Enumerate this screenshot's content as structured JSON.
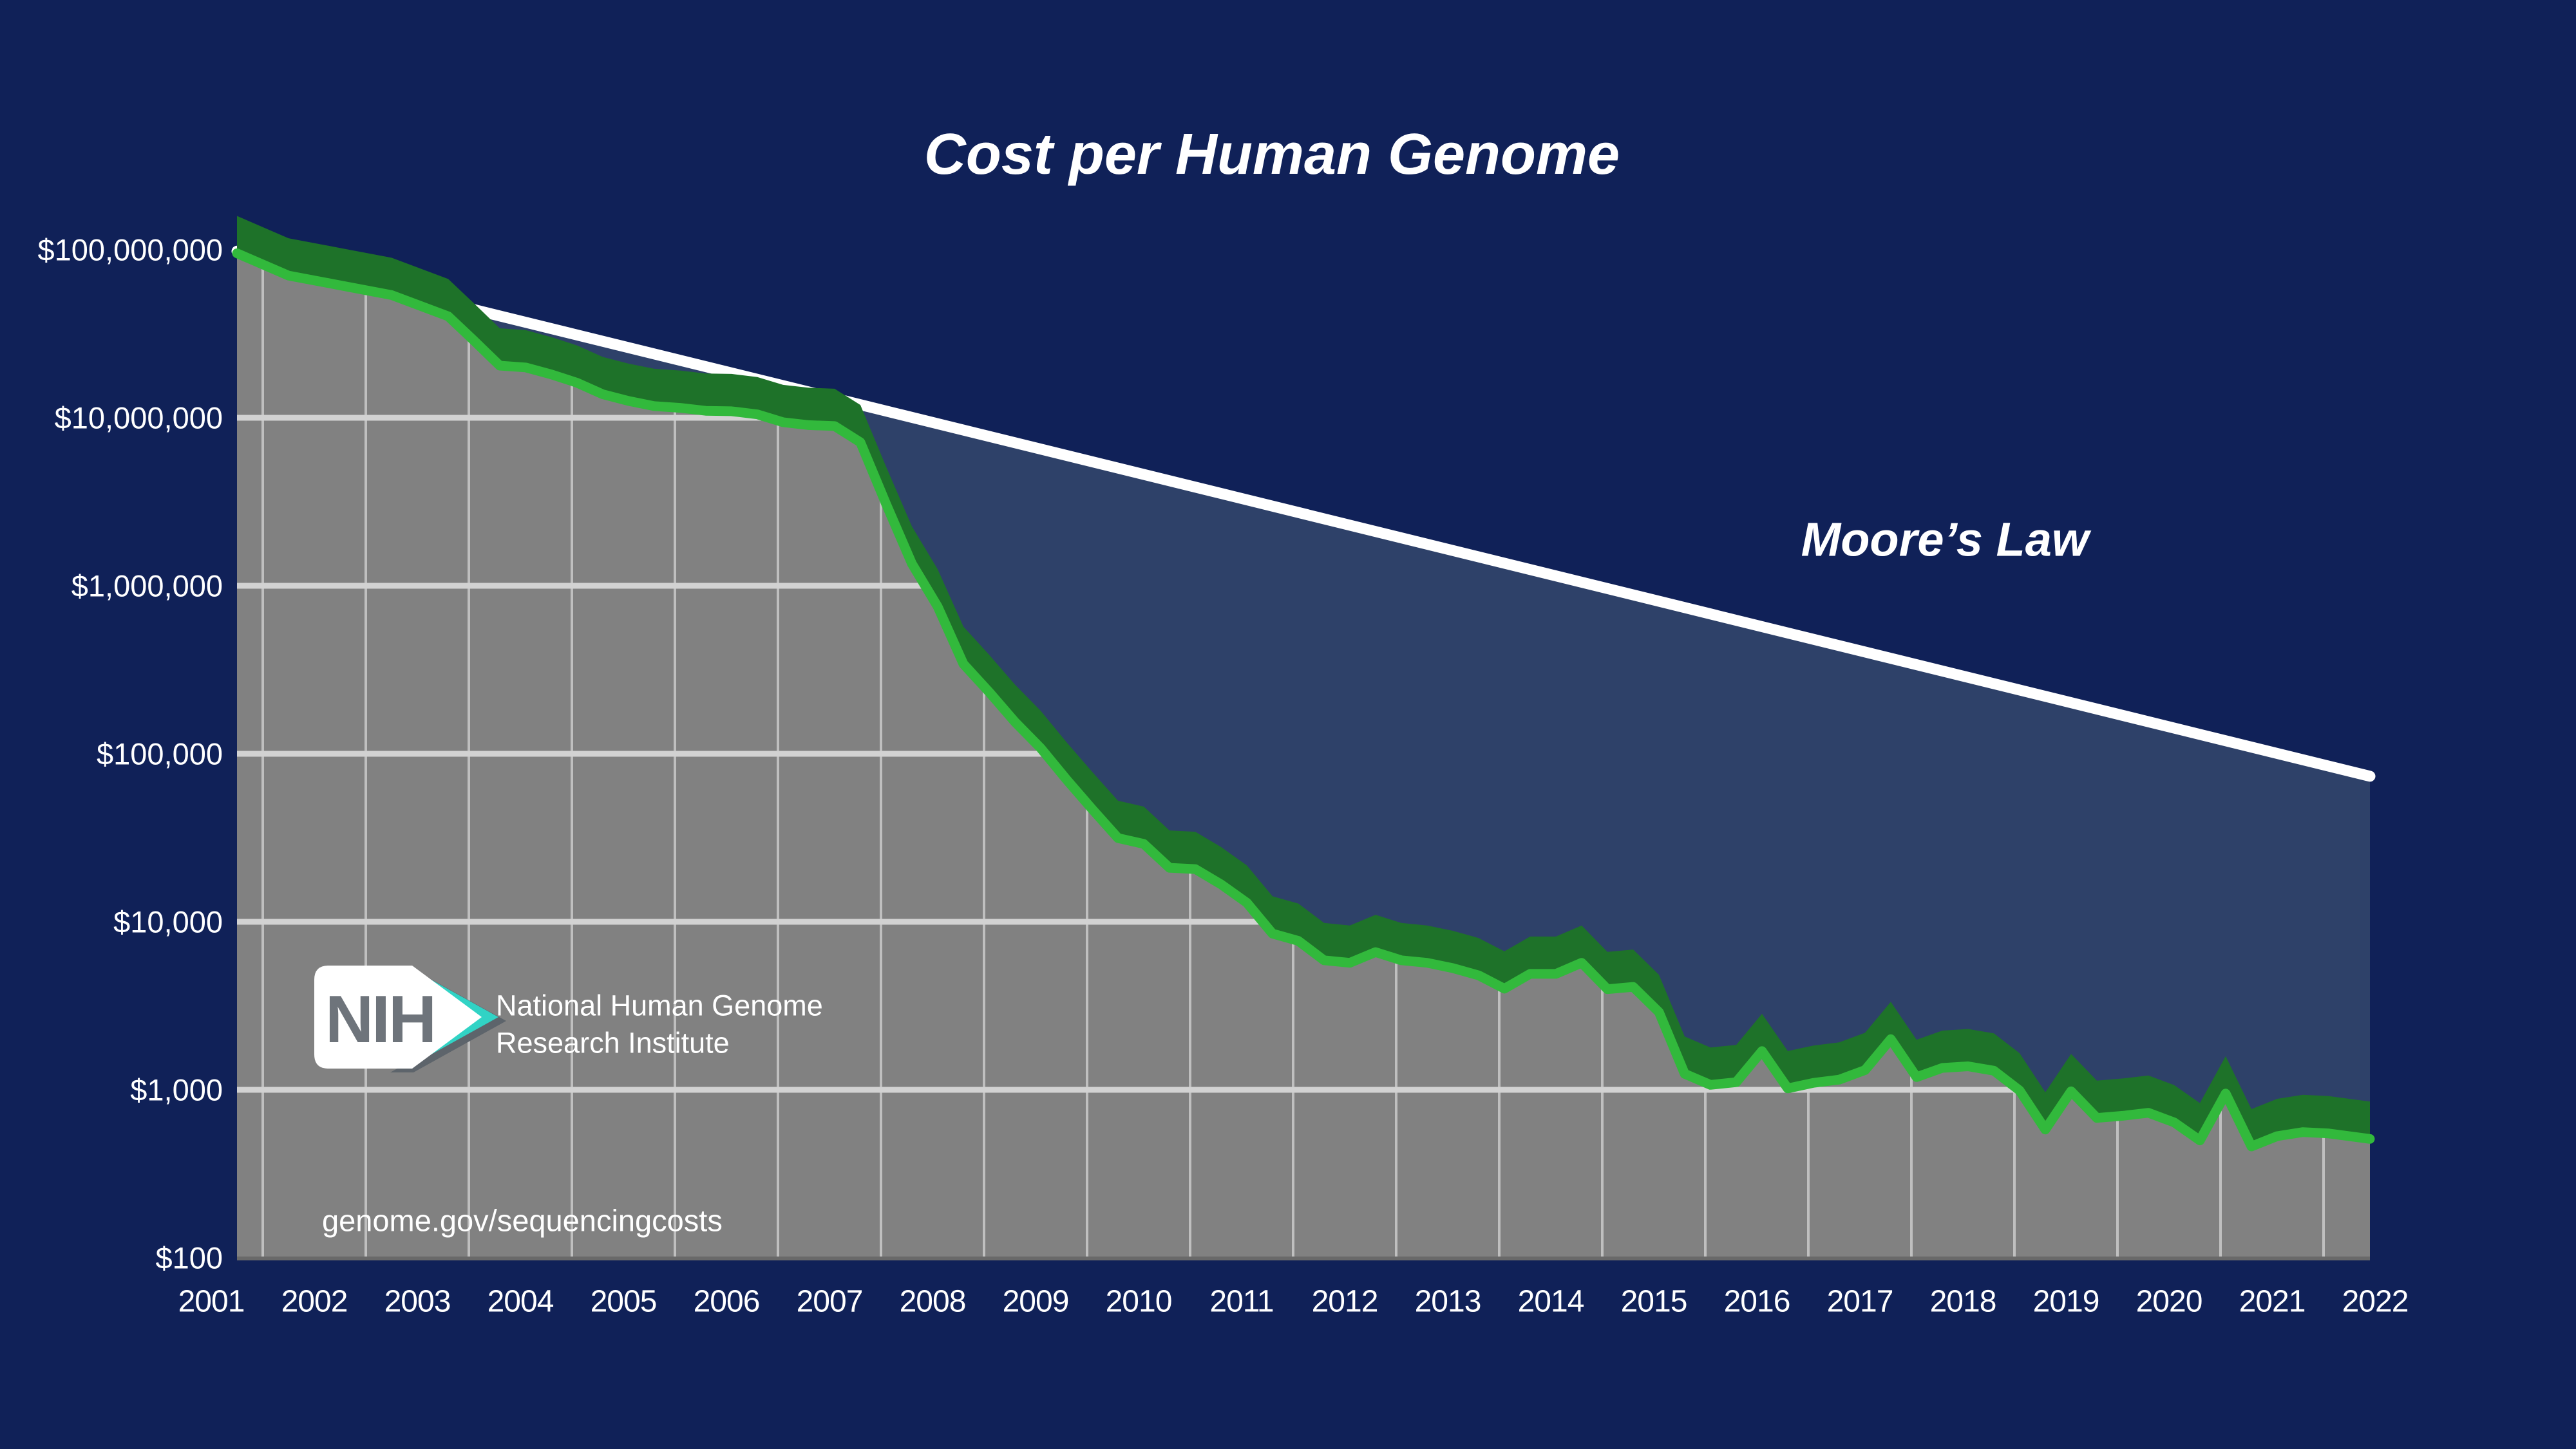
{
  "title": "Cost per Human Genome",
  "moore_label": "Moore’s Law",
  "url_label": "genome.gov/sequencingcosts",
  "logo": {
    "acronym": "NIH",
    "name_line1": "National Human Genome",
    "name_line2": "Research Institute"
  },
  "colors": {
    "background": "#102158",
    "moore_fill": "#2e4169",
    "moore_line": "#ffffff",
    "area_gray": "#818181",
    "grid_vertical": "#bfbfbf",
    "grid_horizontal": "#d2d2d2",
    "plot_bottom_edge": "#696969",
    "green_line": "#32b93c",
    "green_band": "#1e7229",
    "logo_white": "#ffffff",
    "logo_teal": "#31d3c5",
    "logo_shadow": "#5d646b",
    "logo_letters": "#6e747b",
    "text_white": "#ffffff"
  },
  "chart_data": {
    "type": "area",
    "title": "Cost per Human Genome",
    "xlabel": "",
    "ylabel": "",
    "y_log_scale": true,
    "ylim": [
      100,
      158000000
    ],
    "xlim": [
      2001.7,
      2022.5
    ],
    "grid": true,
    "legend_position": "none",
    "x_ticks": [
      2001,
      2002,
      2003,
      2004,
      2005,
      2006,
      2007,
      2008,
      2009,
      2010,
      2011,
      2012,
      2013,
      2014,
      2015,
      2016,
      2017,
      2018,
      2019,
      2020,
      2021,
      2022
    ],
    "y_ticks": [
      {
        "value": 100000000,
        "label": "$100,000,000"
      },
      {
        "value": 10000000,
        "label": "$10,000,000"
      },
      {
        "value": 1000000,
        "label": "$1,000,000"
      },
      {
        "value": 100000,
        "label": "$100,000"
      },
      {
        "value": 10000,
        "label": "$10,000"
      },
      {
        "value": 1000,
        "label": "$1,000"
      },
      {
        "value": 100,
        "label": "$100"
      }
    ],
    "y_gridlines": [
      10000000,
      1000000,
      100000,
      10000,
      1000
    ],
    "series": [
      {
        "name": "Cost per Human Genome",
        "style": "green-3d-ribbon-over-gray-area",
        "values_note": "x = decimal year, y = US dollars (log scale); values estimated from chart pixels / NHGRI quarterly data",
        "points": [
          [
            2001.75,
            95263072
          ],
          [
            2002.25,
            70175437
          ],
          [
            2002.75,
            61448422
          ],
          [
            2003.25,
            53751684
          ],
          [
            2003.8,
            40157554
          ],
          [
            2004.05,
            28780376
          ],
          [
            2004.3,
            20442576
          ],
          [
            2004.55,
            19934346
          ],
          [
            2004.8,
            18116972
          ],
          [
            2005.05,
            16159699
          ],
          [
            2005.3,
            13801124
          ],
          [
            2005.55,
            12585659
          ],
          [
            2005.8,
            11732535
          ],
          [
            2006.05,
            11455315
          ],
          [
            2006.3,
            10998346
          ],
          [
            2006.55,
            10930812
          ],
          [
            2006.8,
            10474556
          ],
          [
            2007.05,
            9408739
          ],
          [
            2007.3,
            9047003
          ],
          [
            2007.55,
            8927342
          ],
          [
            2007.8,
            7147571
          ],
          [
            2008.05,
            3063820
          ],
          [
            2008.3,
            1352982
          ],
          [
            2008.55,
            752080
          ],
          [
            2008.8,
            342502
          ],
          [
            2009.05,
            232735
          ],
          [
            2009.3,
            154714
          ],
          [
            2009.55,
            108065
          ],
          [
            2009.8,
            70333
          ],
          [
            2010.05,
            46774
          ],
          [
            2010.3,
            31512
          ],
          [
            2010.55,
            29092
          ],
          [
            2010.8,
            20963
          ],
          [
            2011.05,
            20601
          ],
          [
            2011.3,
            16712
          ],
          [
            2011.55,
            13000
          ],
          [
            2011.8,
            8500
          ],
          [
            2012.05,
            7700
          ],
          [
            2012.3,
            5900
          ],
          [
            2012.55,
            5700
          ],
          [
            2012.8,
            6600
          ],
          [
            2013.05,
            5900
          ],
          [
            2013.3,
            5700
          ],
          [
            2013.55,
            5300
          ],
          [
            2013.8,
            4800
          ],
          [
            2014.05,
            4000
          ],
          [
            2014.3,
            4900
          ],
          [
            2014.55,
            4900
          ],
          [
            2014.8,
            5700
          ],
          [
            2015.05,
            3970
          ],
          [
            2015.3,
            4100
          ],
          [
            2015.55,
            2900
          ],
          [
            2015.8,
            1245
          ],
          [
            2016.05,
            1070
          ],
          [
            2016.3,
            1110
          ],
          [
            2016.55,
            1700
          ],
          [
            2016.8,
            1020
          ],
          [
            2017.05,
            1100
          ],
          [
            2017.3,
            1150
          ],
          [
            2017.55,
            1310
          ],
          [
            2017.8,
            2000
          ],
          [
            2018.05,
            1190
          ],
          [
            2018.3,
            1350
          ],
          [
            2018.55,
            1380
          ],
          [
            2018.8,
            1300
          ],
          [
            2019.05,
            990
          ],
          [
            2019.3,
            580
          ],
          [
            2019.55,
            980
          ],
          [
            2019.8,
            680
          ],
          [
            2020.05,
            700
          ],
          [
            2020.3,
            730
          ],
          [
            2020.55,
            640
          ],
          [
            2020.8,
            500
          ],
          [
            2021.05,
            950
          ],
          [
            2021.3,
            460
          ],
          [
            2021.55,
            530
          ],
          [
            2021.8,
            560
          ],
          [
            2022.05,
            550
          ],
          [
            2022.45,
            510
          ]
        ]
      },
      {
        "name": "Moore's Law",
        "style": "white-straight-line",
        "points": [
          [
            2001.75,
            98000000
          ],
          [
            2022.45,
            73500
          ]
        ]
      }
    ]
  }
}
